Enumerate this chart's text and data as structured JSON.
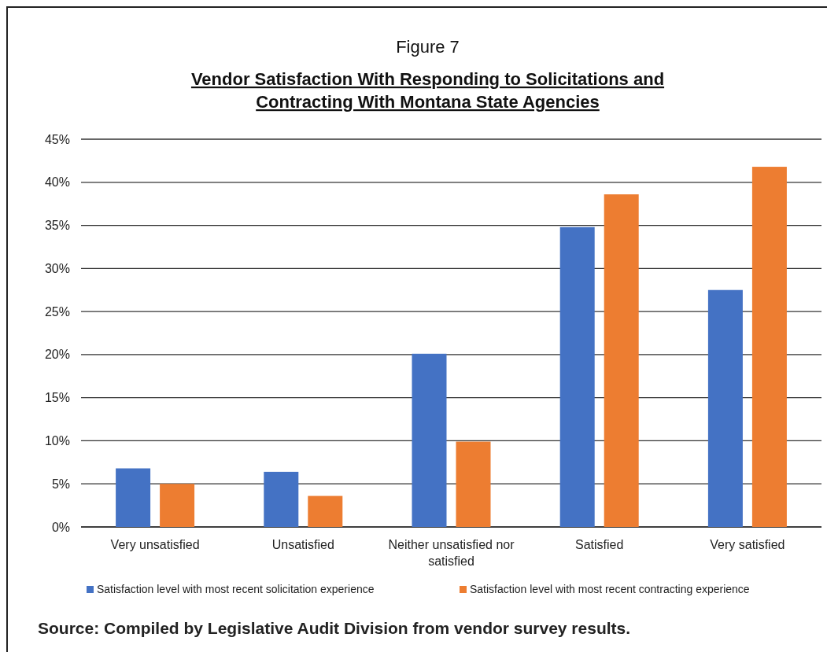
{
  "chart_data": {
    "type": "bar",
    "title": "Figure 7",
    "subtitle": "Vendor Satisfaction With Responding to Solicitations and Contracting With Montana State Agencies",
    "categories": [
      "Very unsatisfied",
      "Unsatisfied",
      "Neither unsatisfied nor satisfied",
      "Satisfied",
      "Very satisfied"
    ],
    "series": [
      {
        "name": "Satisfaction level with most recent solicitation experience",
        "color": "#4472c4",
        "values": [
          6.8,
          6.4,
          20.1,
          34.8,
          27.5
        ]
      },
      {
        "name": "Satisfaction level with most recent contracting experience",
        "color": "#ed7d31",
        "values": [
          5.0,
          3.6,
          9.9,
          38.6,
          41.8
        ]
      }
    ],
    "ylim": [
      0,
      45
    ],
    "yticks": [
      {
        "value": 0,
        "label": "0%"
      },
      {
        "value": 5,
        "label": "5%"
      },
      {
        "value": 10,
        "label": "10%"
      },
      {
        "value": 15,
        "label": "15%"
      },
      {
        "value": 20,
        "label": "20%"
      },
      {
        "value": 25,
        "label": "25%"
      },
      {
        "value": 30,
        "label": "30%"
      },
      {
        "value": 35,
        "label": "35%"
      },
      {
        "value": 40,
        "label": "40%"
      },
      {
        "value": 45,
        "label": "45%"
      }
    ],
    "grid": "y",
    "legend": "bottom",
    "annotations": [
      "Source: Compiled by Legislative Audit Division from vendor survey results."
    ]
  }
}
